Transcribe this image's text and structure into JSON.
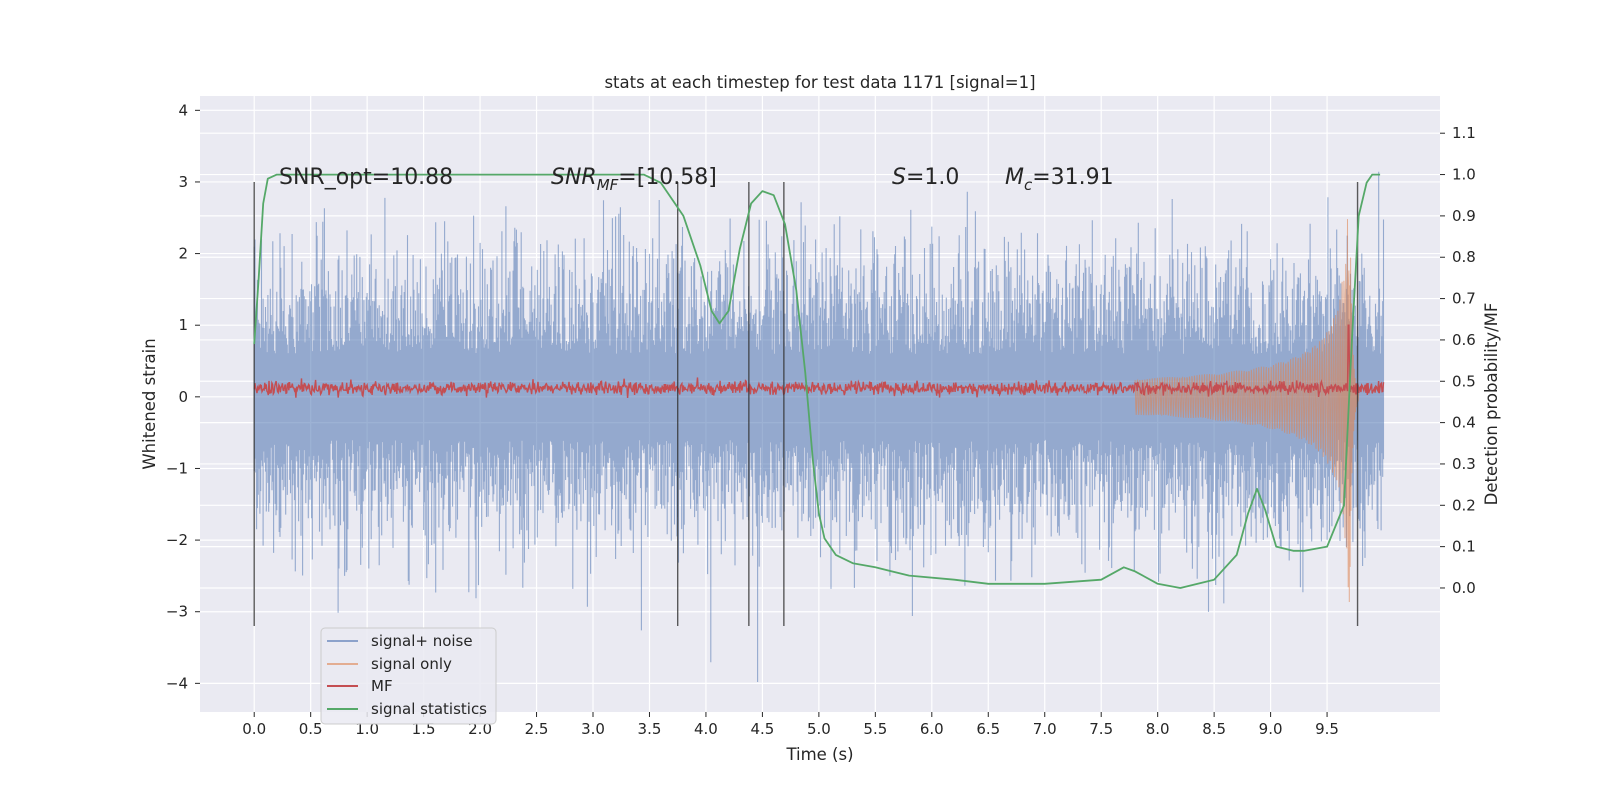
{
  "chart_data": {
    "type": "line",
    "title": "stats at each timestep for test data 1171 [signal=1]",
    "xlabel": "Time (s)",
    "ylabel": "Whitened strain",
    "y2label": "Detection probability/MF",
    "xlim": [
      -0.48,
      10.5
    ],
    "ylim": [
      -4.4,
      4.2
    ],
    "y2lim": [
      -0.3,
      1.19
    ],
    "x_ticks": [
      "0.0",
      "0.5",
      "1.0",
      "1.5",
      "2.0",
      "2.5",
      "3.0",
      "3.5",
      "4.0",
      "4.5",
      "5.0",
      "5.5",
      "6.0",
      "6.5",
      "7.0",
      "7.5",
      "8.0",
      "8.5",
      "9.0",
      "9.5"
    ],
    "y_ticks": [
      "4",
      "3",
      "2",
      "1",
      "0",
      "−1",
      "−2",
      "−3",
      "−4"
    ],
    "y2_ticks": [
      "1.1",
      "1.0",
      "0.9",
      "0.8",
      "0.7",
      "0.6",
      "0.5",
      "0.4",
      "0.3",
      "0.2",
      "0.1",
      "0.0"
    ],
    "grid": true,
    "legend_position": "lower-left",
    "annotations": {
      "snr_opt": "SNR_opt=10.88",
      "snr_mf_label": "SNR",
      "snr_mf_sub": "MF",
      "snr_mf_value": "=[10.58]",
      "s_label": "S",
      "s_value": "=1.0",
      "mc_label": "M",
      "mc_sub": "c",
      "mc_value": "=31.91"
    },
    "markers_x": [
      0.0,
      3.75,
      4.38,
      4.69,
      9.77
    ],
    "series": [
      {
        "name": "signal+ noise",
        "color": "#4c72b0",
        "x_range": [
          0.0,
          10.0
        ],
        "typical_amplitude": 1.5,
        "peak_max": 3.85,
        "peak_min": -4.0
      },
      {
        "name": "signal only",
        "color": "#dd8452",
        "chirp": {
          "start": 7.8,
          "merger": 9.7,
          "peak": 2.9,
          "trough": -3.1
        }
      },
      {
        "name": "MF",
        "color": "#c44e52",
        "x_range": [
          0.0,
          10.0
        ],
        "level": 0.12,
        "noise": 0.08,
        "spike_x": 9.69,
        "spike_y": 1.0
      },
      {
        "name": "signal statistics",
        "color": "#55a868",
        "axis": "right",
        "x": [
          0.0,
          0.04,
          0.08,
          0.12,
          0.2,
          0.5,
          1.0,
          2.0,
          3.0,
          3.45,
          3.6,
          3.8,
          3.95,
          4.05,
          4.12,
          4.2,
          4.3,
          4.4,
          4.5,
          4.6,
          4.7,
          4.8,
          4.88,
          4.95,
          5.0,
          5.05,
          5.15,
          5.3,
          5.5,
          5.8,
          6.2,
          6.5,
          7.0,
          7.5,
          7.7,
          7.8,
          8.0,
          8.2,
          8.5,
          8.7,
          8.8,
          8.88,
          8.95,
          9.05,
          9.2,
          9.3,
          9.5,
          9.65,
          9.72,
          9.78,
          9.85,
          9.9,
          9.97
        ],
        "y": [
          0.59,
          0.75,
          0.93,
          0.99,
          1.0,
          1.0,
          1.0,
          1.0,
          1.0,
          1.0,
          0.98,
          0.9,
          0.78,
          0.67,
          0.64,
          0.67,
          0.82,
          0.93,
          0.96,
          0.95,
          0.88,
          0.72,
          0.52,
          0.3,
          0.18,
          0.12,
          0.08,
          0.06,
          0.05,
          0.03,
          0.02,
          0.01,
          0.01,
          0.02,
          0.05,
          0.04,
          0.01,
          0.0,
          0.02,
          0.08,
          0.18,
          0.24,
          0.19,
          0.1,
          0.09,
          0.09,
          0.1,
          0.2,
          0.6,
          0.9,
          0.98,
          1.0,
          1.0
        ]
      }
    ]
  }
}
